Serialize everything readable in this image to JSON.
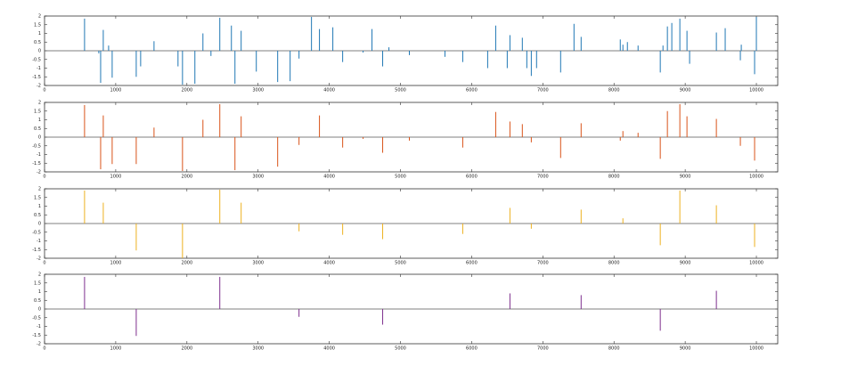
{
  "chart_data": [
    {
      "type": "stem",
      "color": "#1f77b4",
      "xlim": [
        0,
        10300
      ],
      "ylim": [
        -2,
        2
      ],
      "xticks": [
        0,
        1000,
        2000,
        3000,
        4000,
        5000,
        6000,
        7000,
        8000,
        9000,
        10000
      ],
      "yticks": [
        -2,
        -1.5,
        -1,
        -0.5,
        0,
        0.5,
        1,
        1.5,
        2
      ],
      "x": [
        562,
        762,
        788,
        825,
        900,
        950,
        1288,
        1350,
        1538,
        1875,
        1938,
        2112,
        2225,
        2338,
        2462,
        2625,
        2675,
        2762,
        2975,
        3275,
        3450,
        3575,
        3750,
        3862,
        4050,
        4188,
        4475,
        4600,
        4750,
        4838,
        5125,
        5625,
        5875,
        6225,
        6338,
        6500,
        6538,
        6712,
        6775,
        6838,
        6912,
        7250,
        7438,
        7538,
        8088,
        8125,
        8188,
        8338,
        8650,
        8688,
        8750,
        8812,
        8925,
        9025,
        9062,
        9438,
        9562,
        9775,
        9788,
        9975,
        10000
      ],
      "values": [
        1.85,
        -0.15,
        -1.85,
        1.2,
        0.3,
        -1.55,
        -1.5,
        -0.9,
        0.55,
        -0.9,
        -1.95,
        -1.9,
        1.0,
        -0.3,
        1.9,
        1.45,
        -1.9,
        1.15,
        -1.2,
        -1.8,
        -1.75,
        -0.45,
        1.95,
        1.25,
        1.35,
        -0.65,
        -0.1,
        1.25,
        -0.9,
        0.2,
        -0.25,
        -0.35,
        -0.65,
        -1.0,
        1.45,
        -1.0,
        0.9,
        0.75,
        -1.0,
        -1.45,
        -1.0,
        -1.25,
        1.55,
        0.8,
        0.65,
        0.35,
        0.5,
        0.3,
        -1.25,
        0.3,
        1.4,
        1.6,
        1.85,
        1.15,
        -0.75,
        1.05,
        1.3,
        -0.55,
        0.35,
        -1.35,
        1.95
      ]
    },
    {
      "type": "stem",
      "color": "#d95319",
      "xlim": [
        0,
        10300
      ],
      "ylim": [
        -2,
        2
      ],
      "xticks": [
        0,
        1000,
        2000,
        3000,
        4000,
        5000,
        6000,
        7000,
        8000,
        9000,
        10000
      ],
      "yticks": [
        -2,
        -1.5,
        -1,
        -0.5,
        0,
        0.5,
        1,
        1.5,
        2
      ],
      "x": [
        562,
        788,
        825,
        950,
        1288,
        1538,
        1938,
        2225,
        2462,
        2675,
        2762,
        3275,
        3575,
        3862,
        4188,
        4475,
        4750,
        5125,
        5875,
        6338,
        6538,
        6712,
        6838,
        7250,
        7538,
        8088,
        8125,
        8338,
        8650,
        8750,
        8925,
        9025,
        9438,
        9775,
        9975
      ],
      "values": [
        1.85,
        -1.85,
        1.25,
        -1.55,
        -1.55,
        0.55,
        -1.95,
        1.0,
        1.9,
        -1.9,
        1.2,
        -1.7,
        -0.45,
        1.25,
        -0.6,
        -0.1,
        -0.9,
        -0.2,
        -0.6,
        1.45,
        0.9,
        0.75,
        -0.3,
        -1.2,
        0.8,
        -0.2,
        0.35,
        0.25,
        -1.25,
        1.5,
        1.9,
        1.2,
        1.05,
        -0.5,
        -1.35
      ]
    },
    {
      "type": "stem",
      "color": "#edb120",
      "xlim": [
        0,
        10300
      ],
      "ylim": [
        -2,
        2
      ],
      "xticks": [
        0,
        1000,
        2000,
        3000,
        4000,
        5000,
        6000,
        7000,
        8000,
        9000,
        10000
      ],
      "yticks": [
        -2,
        -1.5,
        -1,
        -0.5,
        0,
        0.5,
        1,
        1.5,
        2
      ],
      "x": [
        562,
        825,
        1288,
        1938,
        2462,
        2762,
        3575,
        4188,
        4750,
        5875,
        6538,
        6838,
        7538,
        8125,
        8650,
        8925,
        9438,
        9975
      ],
      "values": [
        1.9,
        1.2,
        -1.55,
        -2.0,
        1.95,
        1.2,
        -0.45,
        -0.65,
        -0.9,
        -0.6,
        0.9,
        -0.3,
        0.8,
        0.3,
        -1.25,
        1.9,
        1.05,
        -1.35
      ]
    },
    {
      "type": "stem",
      "color": "#7e2f8e",
      "xlim": [
        0,
        10300
      ],
      "ylim": [
        -2,
        2
      ],
      "xticks": [
        0,
        1000,
        2000,
        3000,
        4000,
        5000,
        6000,
        7000,
        8000,
        9000,
        10000
      ],
      "yticks": [
        -2,
        -1.5,
        -1,
        -0.5,
        0,
        0.5,
        1,
        1.5,
        2
      ],
      "x": [
        562,
        1288,
        2462,
        3575,
        4750,
        6538,
        7538,
        8650,
        9438
      ],
      "values": [
        1.85,
        -1.55,
        1.85,
        -0.45,
        -0.9,
        0.9,
        0.8,
        -1.25,
        1.05
      ]
    }
  ]
}
